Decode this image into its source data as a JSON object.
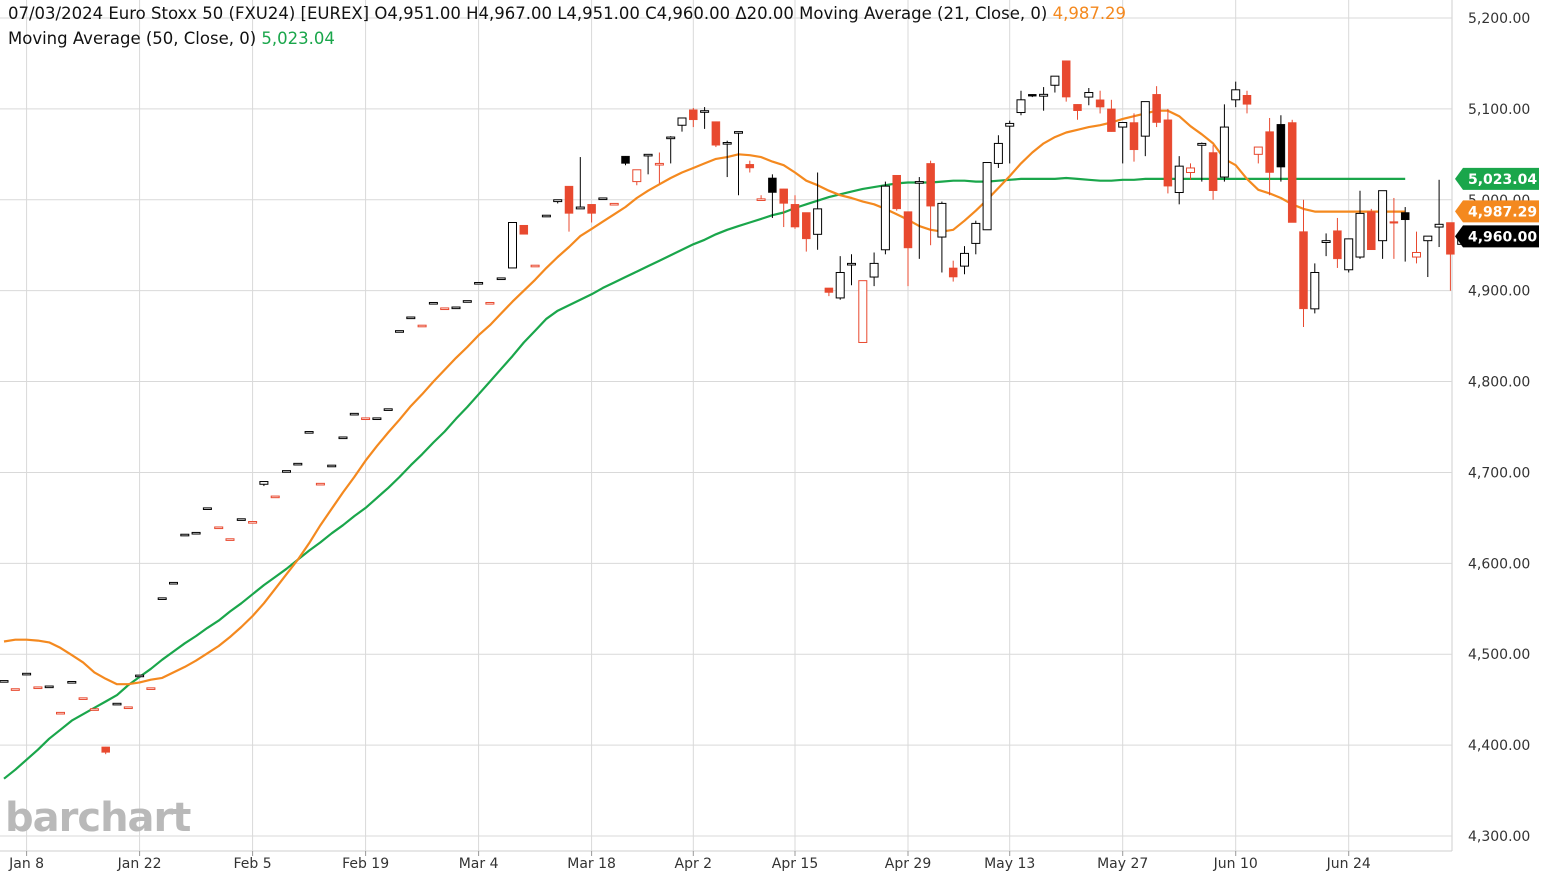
{
  "header": {
    "date": "07/03/2024",
    "instrument": "Euro Stoxx 50 (FXU24) [EUREX]",
    "open": "O4,951.00",
    "high": "H4,967.00",
    "low": "L4,951.00",
    "close": "C4,960.00",
    "change": "Δ20.00",
    "ma21_label": "Moving Average  (21, Close, 0)",
    "ma21_value": "4,987.29",
    "ma50_label": "Moving Average  (50, Close, 0)",
    "ma50_value": "5,023.04"
  },
  "logo_text": "barchart",
  "colors": {
    "up": "#000000",
    "down": "#e8492f",
    "ma21": "#f4891f",
    "ma50": "#1aa64b",
    "last_price": "#000000",
    "grid": "#d9d9d9"
  },
  "chart_data": {
    "type": "candlestick",
    "ylim": [
      4300,
      5200
    ],
    "y_ticks": [
      {
        "value": 5200,
        "label": "5,200.00"
      },
      {
        "value": 5100,
        "label": "5,100.00"
      },
      {
        "value": 5000,
        "label": "5,000.00"
      },
      {
        "value": 4900,
        "label": "4,900.00"
      },
      {
        "value": 4800,
        "label": "4,800.00"
      },
      {
        "value": 4700,
        "label": "4,700.00"
      },
      {
        "value": 4600,
        "label": "4,600.00"
      },
      {
        "value": 4500,
        "label": "4,500.00"
      },
      {
        "value": 4400,
        "label": "4,400.00"
      },
      {
        "value": 4300,
        "label": "4,300.00"
      }
    ],
    "x_ticks": [
      {
        "index": 2,
        "label": "Jan 8"
      },
      {
        "index": 12,
        "label": "Jan 22"
      },
      {
        "index": 22,
        "label": "Feb 5"
      },
      {
        "index": 32,
        "label": "Feb 19"
      },
      {
        "index": 42,
        "label": "Mar 4"
      },
      {
        "index": 52,
        "label": "Mar 18"
      },
      {
        "index": 61,
        "label": "Apr 2"
      },
      {
        "index": 70,
        "label": "Apr 15"
      },
      {
        "index": 80,
        "label": "Apr 29"
      },
      {
        "index": 89,
        "label": "May 13"
      },
      {
        "index": 99,
        "label": "May 27"
      },
      {
        "index": 109,
        "label": "Jun 10"
      },
      {
        "index": 119,
        "label": "Jun 24"
      }
    ],
    "candles": [
      [
        4471,
        4471,
        4471,
        4471
      ],
      [
        4462,
        4462,
        4462,
        4462
      ],
      [
        4479,
        4479,
        4479,
        4479
      ],
      [
        4464,
        4464,
        4464,
        4464
      ],
      [
        4465,
        4465,
        4465,
        4465
      ],
      [
        4436,
        4436,
        4436,
        4436
      ],
      [
        4470,
        4470,
        4470,
        4470
      ],
      [
        4452,
        4452,
        4452,
        4452
      ],
      [
        4440,
        4440,
        4440,
        4440
      ],
      [
        4398,
        4398,
        4390,
        4392
      ],
      [
        4446,
        4446,
        4446,
        4446
      ],
      [
        4442,
        4442,
        4442,
        4442
      ],
      [
        4477,
        4477,
        4477,
        4477
      ],
      [
        4463,
        4463,
        4463,
        4463
      ],
      [
        4562,
        4562,
        4562,
        4562
      ],
      [
        4579,
        4579,
        4579,
        4579
      ],
      [
        4632,
        4632,
        4632,
        4632
      ],
      [
        4634,
        4634,
        4634,
        4634
      ],
      [
        4661,
        4661,
        4661,
        4661
      ],
      [
        4640,
        4640,
        4640,
        4640
      ],
      [
        4627,
        4627,
        4627,
        4627
      ],
      [
        4649,
        4649,
        4649,
        4649
      ],
      [
        4646,
        4646,
        4646,
        4646
      ],
      [
        4687,
        4690,
        4685,
        4690
      ],
      [
        4674,
        4674,
        4674,
        4674
      ],
      [
        4702,
        4702,
        4702,
        4702
      ],
      [
        4710,
        4710,
        4710,
        4710
      ],
      [
        4745,
        4745,
        4745,
        4745
      ],
      [
        4688,
        4688,
        4688,
        4688
      ],
      [
        4708,
        4708,
        4708,
        4708
      ],
      [
        4739,
        4739,
        4739,
        4739
      ],
      [
        4765,
        4765,
        4765,
        4765
      ],
      [
        4760,
        4760,
        4760,
        4760
      ],
      [
        4760,
        4760,
        4760,
        4760
      ],
      [
        4770,
        4770,
        4770,
        4770
      ],
      [
        4856,
        4856,
        4856,
        4856
      ],
      [
        4871,
        4871,
        4871,
        4871
      ],
      [
        4862,
        4862,
        4862,
        4862
      ],
      [
        4887,
        4887,
        4887,
        4887
      ],
      [
        4881,
        4881,
        4881,
        4881
      ],
      [
        4882,
        4882,
        4882,
        4882
      ],
      [
        4889,
        4889,
        4889,
        4889
      ],
      [
        4909,
        4909,
        4909,
        4909
      ],
      [
        4887,
        4887,
        4887,
        4887
      ],
      [
        4914,
        4914,
        4914,
        4914
      ],
      [
        4925,
        4975,
        4925,
        4975
      ],
      [
        4972,
        4972,
        4962,
        4962
      ],
      [
        4928,
        4928,
        4928,
        4928
      ],
      [
        4983,
        4983,
        4983,
        4983
      ],
      [
        4998,
        5000,
        4996,
        5000
      ],
      [
        5015,
        5015,
        4965,
        4985
      ],
      [
        4990,
        5047,
        4990,
        4992
      ],
      [
        4995,
        4995,
        4975,
        4985
      ],
      [
        5002,
        5002,
        5002,
        5002
      ],
      [
        4996,
        4996,
        4996,
        4996
      ],
      [
        5048,
        5048,
        5038,
        5040
      ],
      [
        5020,
        5033,
        5016,
        5033
      ],
      [
        5050,
        5050,
        5028,
        5050
      ],
      [
        5040,
        5052,
        5018,
        5040
      ],
      [
        5069,
        5070,
        5040,
        5069
      ],
      [
        5082,
        5090,
        5075,
        5090
      ],
      [
        5099,
        5101,
        5080,
        5088
      ],
      [
        5098,
        5102,
        5078,
        5098
      ],
      [
        5086,
        5086,
        5058,
        5060
      ],
      [
        5063,
        5065,
        5025,
        5063
      ],
      [
        5075,
        5075,
        5005,
        5075
      ],
      [
        5039,
        5043,
        5030,
        5035
      ],
      [
        5001,
        5005,
        5000,
        5001
      ],
      [
        5024,
        5028,
        4980,
        5008
      ],
      [
        5012,
        5012,
        4970,
        4996
      ],
      [
        4995,
        5005,
        4968,
        4970
      ],
      [
        4986,
        4986,
        4943,
        4957
      ],
      [
        4962,
        5030,
        4945,
        4990
      ],
      [
        4903,
        4903,
        4894,
        4898
      ],
      [
        4892,
        4938,
        4890,
        4920
      ],
      [
        4930,
        4940,
        4906,
        4930
      ],
      [
        4843,
        4911,
        4843,
        4911
      ],
      [
        4915,
        4942,
        4905,
        4930
      ],
      [
        4945,
        5020,
        4940,
        5015
      ],
      [
        5027,
        5027,
        4988,
        4990
      ],
      [
        4987,
        4987,
        4905,
        4947
      ],
      [
        5019,
        5025,
        4935,
        5020
      ],
      [
        5040,
        5043,
        4950,
        4993
      ],
      [
        4959,
        4998,
        4920,
        4996
      ],
      [
        4925,
        4933,
        4910,
        4915
      ],
      [
        4927,
        4949,
        4918,
        4941
      ],
      [
        4952,
        4977,
        4940,
        4974
      ],
      [
        4967,
        5041,
        4967,
        5041
      ],
      [
        5040,
        5071,
        5035,
        5062
      ],
      [
        5081,
        5087,
        5040,
        5084
      ],
      [
        5096,
        5120,
        5093,
        5110
      ],
      [
        5116,
        5116,
        5113,
        5114
      ],
      [
        5114,
        5124,
        5098,
        5116
      ],
      [
        5126,
        5134,
        5118,
        5136
      ],
      [
        5153,
        5153,
        5108,
        5113
      ],
      [
        5105,
        5105,
        5088,
        5098
      ],
      [
        5113,
        5123,
        5104,
        5118
      ],
      [
        5110,
        5120,
        5095,
        5102
      ],
      [
        5100,
        5110,
        5075,
        5075
      ],
      [
        5080,
        5080,
        5040,
        5085
      ],
      [
        5085,
        5095,
        5042,
        5055
      ],
      [
        5070,
        5102,
        5048,
        5108
      ],
      [
        5116,
        5125,
        5080,
        5085
      ],
      [
        5088,
        5100,
        5007,
        5015
      ],
      [
        5008,
        5048,
        4995,
        5037
      ],
      [
        5030,
        5040,
        5022,
        5035
      ],
      [
        5060,
        5063,
        5020,
        5062
      ],
      [
        5052,
        5060,
        5000,
        5010
      ],
      [
        5025,
        5105,
        5020,
        5080
      ],
      [
        5110,
        5130,
        5102,
        5121
      ],
      [
        5115,
        5120,
        5095,
        5105
      ],
      [
        5050,
        5058,
        5040,
        5058
      ],
      [
        5075,
        5090,
        5005,
        5030
      ],
      [
        5083,
        5093,
        5020,
        5036
      ],
      [
        5085,
        5088,
        4975,
        4975
      ],
      [
        4965,
        5000,
        4860,
        4880
      ],
      [
        4880,
        4930,
        4875,
        4920
      ],
      [
        4953,
        4963,
        4938,
        4955
      ],
      [
        4966,
        4980,
        4925,
        4935
      ],
      [
        4923,
        4955,
        4920,
        4957
      ],
      [
        4937,
        5010,
        4935,
        4985
      ],
      [
        4987,
        4990,
        4945,
        4945
      ],
      [
        4955,
        5008,
        4935,
        5010
      ],
      [
        4976,
        5002,
        4935,
        4975
      ],
      [
        4986,
        4992,
        4932,
        4978
      ],
      [
        4937,
        4965,
        4930,
        4942
      ],
      [
        4955,
        4958,
        4915,
        4960
      ],
      [
        4970,
        5022,
        4948,
        4973
      ],
      [
        4975,
        4975,
        4900,
        4940
      ],
      [
        4951,
        4967,
        4951,
        4960
      ]
    ],
    "ma21": [
      4514,
      4516,
      4516,
      4515,
      4513,
      4507,
      4499,
      4491,
      4480,
      4473,
      4467,
      4467,
      4469,
      4472,
      4474,
      4480,
      4486,
      4493,
      4501,
      4509,
      4519,
      4530,
      4542,
      4556,
      4572,
      4588,
      4604,
      4622,
      4642,
      4660,
      4678,
      4695,
      4713,
      4729,
      4744,
      4758,
      4773,
      4786,
      4800,
      4813,
      4826,
      4838,
      4851,
      4862,
      4875,
      4888,
      4900,
      4912,
      4925,
      4937,
      4948,
      4960,
      4968,
      4976,
      4984,
      4992,
      5002,
      5010,
      5017,
      5024,
      5030,
      5035,
      5040,
      5045,
      5047,
      5050,
      5049,
      5047,
      5042,
      5038,
      5030,
      5021,
      5016,
      5010,
      5005,
      5002,
      4998,
      4995,
      4990,
      4984,
      4978,
      4971,
      4967,
      4965,
      4967,
      4977,
      4988,
      5000,
      5013,
      5026,
      5040,
      5052,
      5062,
      5069,
      5074,
      5077,
      5080,
      5082,
      5085,
      5089,
      5092,
      5095,
      5098,
      5098,
      5092,
      5081,
      5072,
      5062,
      5045,
      5038,
      5023,
      5011,
      5007,
      5002,
      4995,
      4990,
      4987,
      4987,
      4987,
      4987,
      4987,
      4987,
      4987,
      4987,
      4987
    ],
    "ma50": [
      4363,
      4373,
      4384,
      4395,
      4407,
      4417,
      4427,
      4434,
      4441,
      4448,
      4455,
      4466,
      4475,
      4484,
      4494,
      4503,
      4512,
      4520,
      4529,
      4537,
      4547,
      4556,
      4566,
      4576,
      4585,
      4594,
      4604,
      4614,
      4623,
      4633,
      4642,
      4652,
      4661,
      4672,
      4683,
      4695,
      4708,
      4720,
      4733,
      4745,
      4759,
      4772,
      4786,
      4800,
      4814,
      4828,
      4843,
      4856,
      4869,
      4878,
      4884,
      4890,
      4896,
      4903,
      4909,
      4915,
      4921,
      4927,
      4933,
      4939,
      4945,
      4951,
      4956,
      4962,
      4967,
      4971,
      4975,
      4979,
      4983,
      4986,
      4991,
      4995,
      4999,
      5003,
      5006,
      5009,
      5012,
      5014,
      5016,
      5018,
      5019,
      5019,
      5019,
      5020,
      5021,
      5021,
      5020,
      5020,
      5021,
      5022,
      5023,
      5023,
      5023,
      5023,
      5024,
      5023,
      5022,
      5021,
      5021,
      5022,
      5022,
      5023,
      5023,
      5023,
      5023,
      5023,
      5023,
      5023,
      5023,
      5023,
      5023,
      5023,
      5023,
      5023,
      5023,
      5023,
      5023,
      5023,
      5023,
      5023,
      5023,
      5023,
      5023,
      5023,
      5023
    ],
    "badges": [
      {
        "value": 5023.04,
        "label": "5,023.04",
        "color": "#1aa64b"
      },
      {
        "value": 4987.29,
        "label": "4,987.29",
        "color": "#f4891f"
      },
      {
        "value": 4960.0,
        "label": "4,960.00",
        "color": "#000000"
      }
    ]
  }
}
